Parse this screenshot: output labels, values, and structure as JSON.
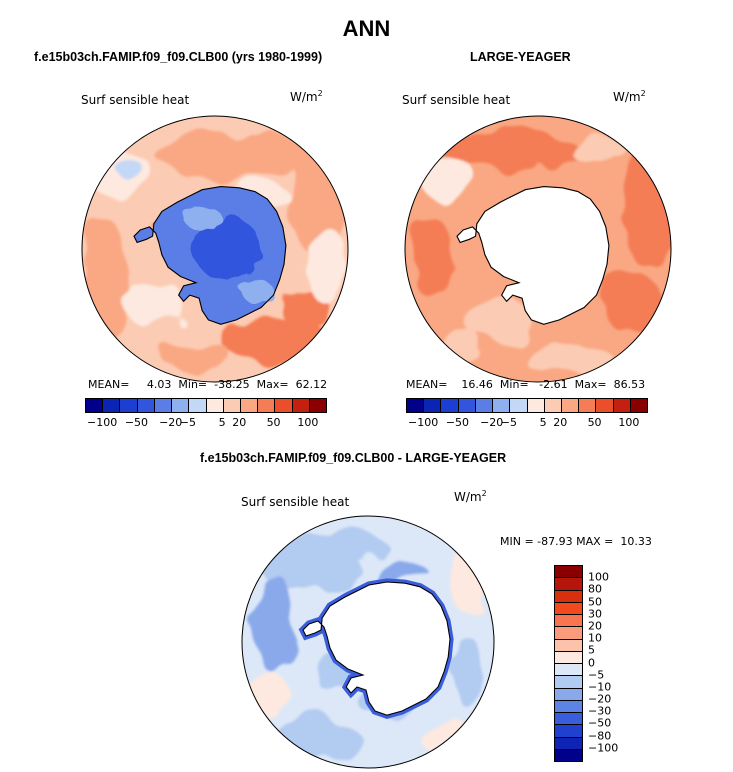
{
  "title": "ANN",
  "panels": [
    {
      "title": "f.e15b03ch.FAMIP.f09_f09.CLB00 (yrs 1980-1999)",
      "variable": "Surf sensible heat",
      "units_base": "W/m",
      "units_exp": "2",
      "stats": {
        "mean_label": "MEAN=",
        "mean": "4.03",
        "min_label": "Min=",
        "min": "-38.25",
        "max_label": "Max=",
        "max": "62.12"
      }
    },
    {
      "title": "LARGE-YEAGER",
      "variable": "Surf sensible heat",
      "units_base": "W/m",
      "units_exp": "2",
      "stats": {
        "mean_label": "MEAN=",
        "mean": "16.46",
        "min_label": "Min=",
        "min": "-2.61",
        "max_label": "Max=",
        "max": "86.53"
      }
    },
    {
      "title": "f.e15b03ch.FAMIP.f09_f09.CLB00 - LARGE-YEAGER",
      "variable": "Surf sensible heat",
      "units_base": "W/m",
      "units_exp": "2",
      "stats_line": "MIN = -87.93 MAX =  10.33"
    }
  ],
  "colorbar_top": {
    "colors": [
      "#00008b",
      "#0a24b4",
      "#1c3fd2",
      "#3355dd",
      "#5a7ee6",
      "#8fb0ee",
      "#c3d7f6",
      "#fde9df",
      "#fccbb3",
      "#f9a883",
      "#f47d55",
      "#ea4e2b",
      "#c4200f",
      "#8a0000"
    ],
    "tick_labels": [
      "−100",
      "−50",
      "−20",
      "−5",
      "5",
      "20",
      "50",
      "100"
    ]
  },
  "colorbar_diff": {
    "colors": [
      "#8a0000",
      "#b5150a",
      "#d8300f",
      "#f34a1d",
      "#f87550",
      "#fa9b7c",
      "#fcc2aa",
      "#fde9df",
      "#dce8f8",
      "#b2cbf1",
      "#89a9eb",
      "#5c84e4",
      "#3a5ddc",
      "#2041d0",
      "#0d24b5",
      "#00008b"
    ],
    "tick_labels": [
      "100",
      "80",
      "50",
      "30",
      "20",
      "10",
      "5",
      "0",
      "−5",
      "−10",
      "−20",
      "−30",
      "−50",
      "−80",
      "−100"
    ]
  }
}
